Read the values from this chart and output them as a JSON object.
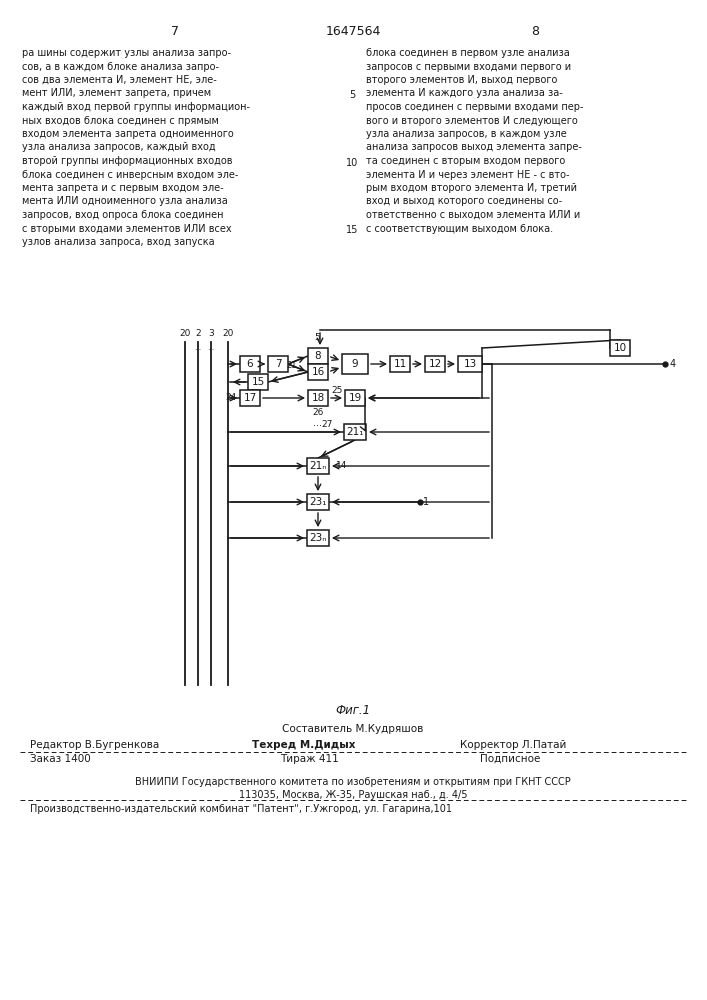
{
  "page_number_left": "7",
  "page_number_center": "1647564",
  "page_number_right": "8",
  "text_left": [
    "ра шины содержит узлы анализа запро-",
    "сов, а в каждом блоке анализа запро-",
    "сов два элемента И, элемент НЕ, эле-",
    "мент ИЛИ, элемент запрета, причем",
    "каждый вход первой группы информацион-",
    "ных входов блока соединен с прямым",
    "входом элемента запрета одноименного",
    "узла анализа запросов, каждый вход",
    "второй группы информационных входов",
    "блока соединен с инверсным входом эле-",
    "мента запрета и с первым входом эле-",
    "мента ИЛИ одноименного узла анализа",
    "запросов, вход опроса блока соединен",
    "с вторыми входами элементов ИЛИ всех",
    "узлов анализа запроса, вход запуска"
  ],
  "text_right": [
    "блока соединен в первом узле анализа",
    "запросов с первыми входами первого и",
    "второго элементов И, выход первого",
    "элемента И каждого узла анализа за-",
    "просов соединен с первыми входами пер-",
    "вого и второго элементов И следующего",
    "узла анализа запросов, в каждом узле",
    "анализа запросов выход элемента запре-",
    "та соединен с вторым входом первого",
    "элемента И и через элемент НЕ - с вто-",
    "рым входом второго элемента И, третий",
    "вход и выход которого соединены со-",
    "ответственно с выходом элемента ИЛИ и",
    "с соответствующим выходом блока."
  ],
  "line_numbers": {
    "5": 4,
    "10": 9,
    "15": 14
  },
  "fig_caption": "Фиг.1",
  "footer_sestavitel": "Составитель М.Кудряшов",
  "footer_editor": "Редактор В.Бугренкова",
  "footer_techred": "Техред М.Дидых",
  "footer_corrector": "Корректор Л.Патай",
  "footer_order": "Заказ 1400",
  "footer_tirazh": "Тираж 411",
  "footer_podpisnoe": "Подписное",
  "footer_vnipi": "ВНИИПИ Государственного комитета по изобретениям и открытиям при ГКНТ СССР",
  "footer_address": "113035, Москва, Ж-35, Раушская наб., д. 4/5",
  "footer_print": "Производственно-издательский комбинат \"Патент\", г.Ужгород, ул. Гагарина,101",
  "bg_color": "#ffffff",
  "text_color": "#1a1a1a",
  "line_color": "#1a1a1a"
}
